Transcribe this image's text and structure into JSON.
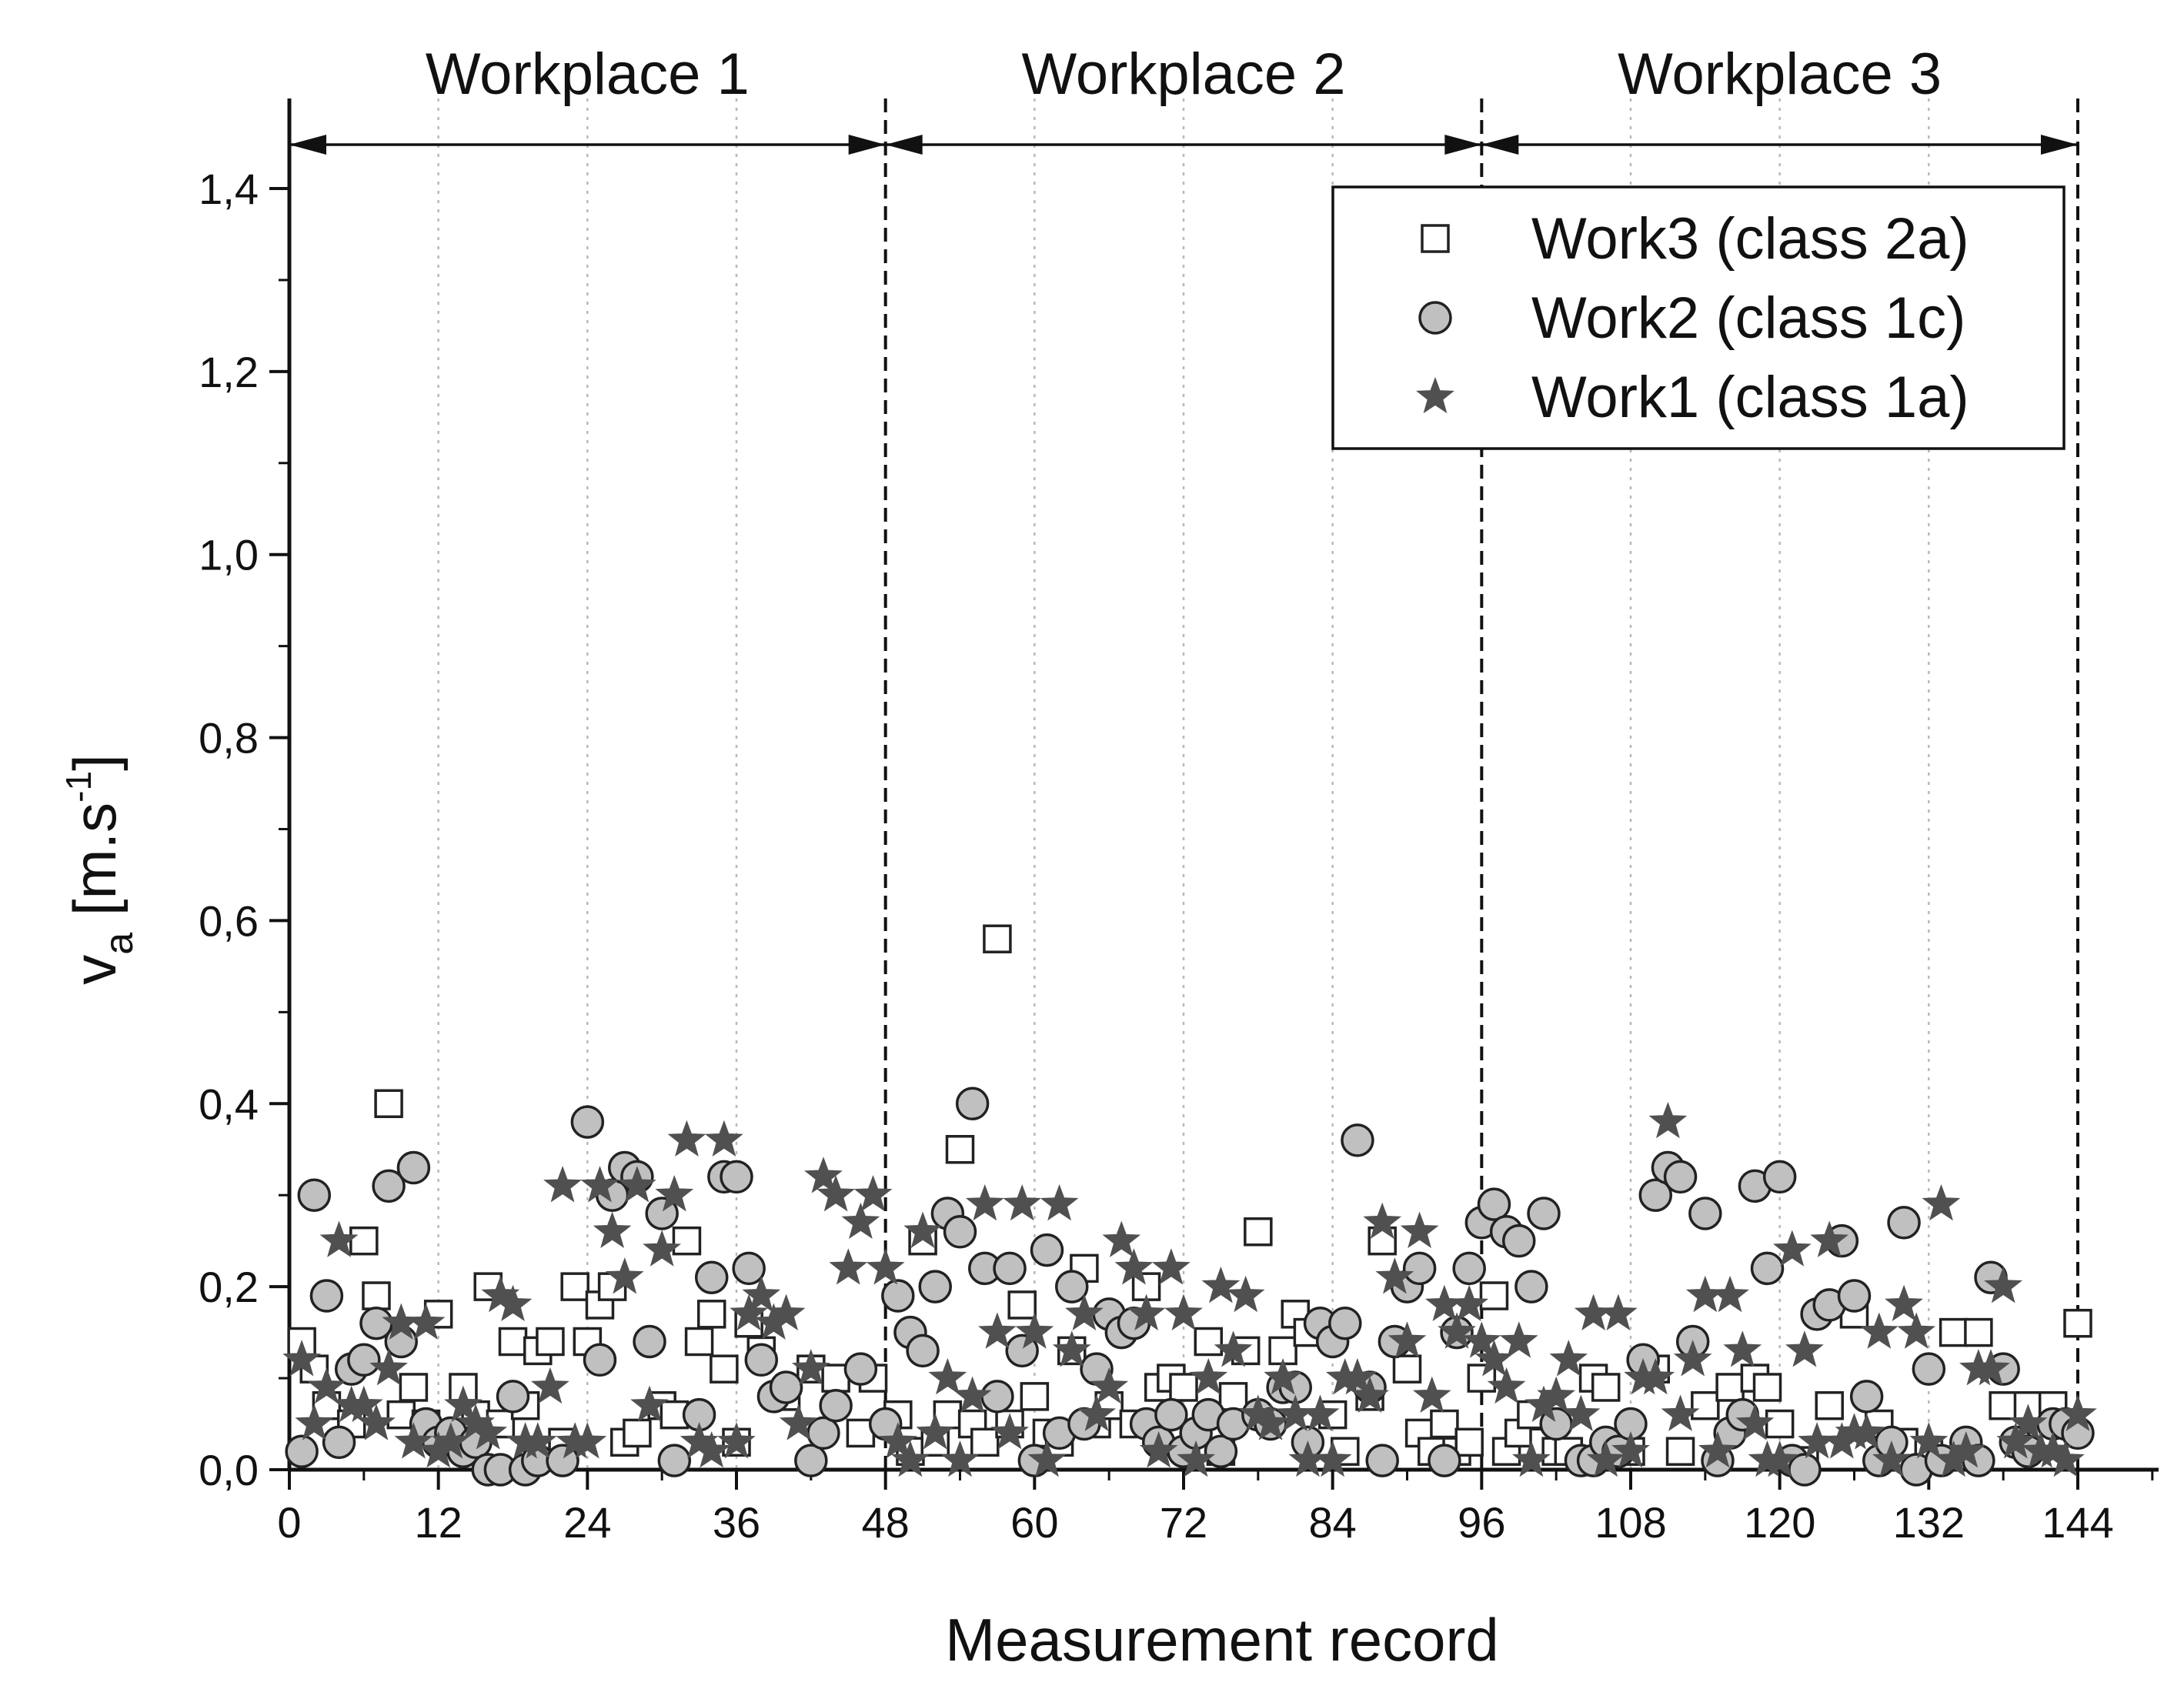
{
  "chart_data": {
    "type": "scatter",
    "xlabel": "Measurement record",
    "ylabel_main": "v",
    "ylabel_sub": "a",
    "ylabel_unit_prefix": " [m.s",
    "ylabel_unit_sup": "-1",
    "ylabel_unit_suffix": "]",
    "xlim": [
      0,
      144
    ],
    "ylim": [
      0,
      1.4
    ],
    "xticks": [
      0,
      12,
      24,
      36,
      48,
      60,
      72,
      84,
      96,
      108,
      120,
      132,
      144
    ],
    "xtick_labels": [
      "0",
      "12",
      "24",
      "36",
      "48",
      "60",
      "72",
      "84",
      "96",
      "108",
      "120",
      "132",
      "144"
    ],
    "yticks": [
      0,
      0.2,
      0.4,
      0.6,
      0.8,
      1.0,
      1.2,
      1.4
    ],
    "ytick_labels": [
      "0,0",
      "0,2",
      "0,4",
      "0,6",
      "0,8",
      "1,0",
      "1,2",
      "1,4"
    ],
    "grid": "vertical dotted",
    "regions": [
      {
        "label": "Workplace 1",
        "start": 0,
        "end": 48
      },
      {
        "label": "Workplace 2",
        "start": 48,
        "end": 96
      },
      {
        "label": "Workplace 3",
        "start": 96,
        "end": 144
      }
    ],
    "legend_position": "top-right",
    "series": [
      {
        "name": "Work3 (class 2a)",
        "marker": "square",
        "fill": "#ffffff",
        "stroke": "#222222",
        "x": [
          1,
          2,
          3,
          5,
          6,
          7,
          8,
          9,
          10,
          11,
          12,
          13,
          14,
          15,
          16,
          17,
          18,
          19,
          20,
          21,
          22,
          23,
          24,
          25,
          26,
          27,
          28,
          30,
          31,
          32,
          33,
          34,
          35,
          36,
          37,
          38,
          40,
          42,
          44,
          46,
          47,
          49,
          50,
          51,
          52,
          53,
          54,
          55,
          56,
          57,
          58,
          59,
          60,
          61,
          62,
          63,
          64,
          65,
          66,
          68,
          69,
          70,
          71,
          72,
          74,
          75,
          76,
          77,
          78,
          80,
          81,
          82,
          84,
          85,
          87,
          88,
          90,
          91,
          92,
          93,
          94,
          95,
          96,
          97,
          98,
          99,
          100,
          101,
          102,
          103,
          105,
          106,
          108,
          110,
          112,
          114,
          116,
          118,
          119,
          120,
          122,
          124,
          126,
          128,
          130,
          132,
          134,
          136,
          138,
          140,
          142,
          144
        ],
        "y": [
          0.14,
          0.11,
          0.07,
          0.05,
          0.25,
          0.19,
          0.4,
          0.06,
          0.09,
          0.05,
          0.17,
          0.04,
          0.09,
          0.06,
          0.2,
          0.05,
          0.14,
          0.07,
          0.13,
          0.14,
          0.03,
          0.2,
          0.14,
          0.18,
          0.2,
          0.03,
          0.04,
          0.07,
          0.06,
          0.25,
          0.14,
          0.17,
          0.11,
          0.03,
          0.16,
          0.13,
          0.08,
          0.11,
          0.1,
          0.04,
          0.1,
          0.06,
          0.02,
          0.25,
          0.03,
          0.06,
          0.35,
          0.05,
          0.03,
          0.58,
          0.05,
          0.18,
          0.08,
          0.04,
          0.03,
          0.13,
          0.22,
          0.05,
          0.07,
          0.05,
          0.2,
          0.09,
          0.1,
          0.09,
          0.14,
          0.02,
          0.08,
          0.13,
          0.26,
          0.13,
          0.17,
          0.15,
          0.06,
          0.02,
          0.08,
          0.25,
          0.11,
          0.04,
          0.02,
          0.05,
          0.02,
          0.03,
          0.1,
          0.19,
          0.02,
          0.04,
          0.06,
          0.03,
          0.02,
          0.02,
          0.1,
          0.09,
          0.02,
          0.11,
          0.02,
          0.07,
          0.09,
          0.1,
          0.09,
          0.05,
          0.01,
          0.07,
          0.17,
          0.05,
          0.03,
          0.02,
          0.15,
          0.15,
          0.07,
          0.07,
          0.07,
          0.16
        ]
      },
      {
        "name": "Work2 (class 1c)",
        "marker": "circle",
        "fill": "#c0c0c0",
        "stroke": "#222222",
        "x": [
          1,
          2,
          3,
          4,
          5,
          6,
          7,
          8,
          9,
          10,
          11,
          12,
          13,
          14,
          15,
          16,
          17,
          18,
          19,
          20,
          22,
          24,
          25,
          26,
          27,
          28,
          29,
          30,
          31,
          33,
          34,
          35,
          36,
          37,
          38,
          39,
          40,
          42,
          43,
          44,
          46,
          48,
          49,
          50,
          51,
          52,
          53,
          54,
          55,
          56,
          57,
          58,
          59,
          60,
          61,
          62,
          63,
          64,
          65,
          66,
          67,
          68,
          69,
          70,
          71,
          72,
          73,
          74,
          75,
          76,
          78,
          79,
          80,
          81,
          82,
          83,
          84,
          85,
          86,
          87,
          88,
          89,
          90,
          91,
          93,
          94,
          95,
          96,
          97,
          98,
          99,
          100,
          101,
          102,
          104,
          105,
          106,
          107,
          108,
          109,
          110,
          111,
          112,
          113,
          114,
          115,
          116,
          117,
          118,
          119,
          120,
          121,
          122,
          123,
          124,
          125,
          126,
          127,
          128,
          129,
          130,
          131,
          132,
          133,
          135,
          136,
          137,
          138,
          139,
          140,
          142,
          143,
          144
        ],
        "y": [
          0.02,
          0.3,
          0.19,
          0.03,
          0.11,
          0.12,
          0.16,
          0.31,
          0.14,
          0.33,
          0.05,
          0.03,
          0.04,
          0.02,
          0.03,
          0.0,
          0.0,
          0.08,
          0.0,
          0.01,
          0.01,
          0.38,
          0.12,
          0.3,
          0.33,
          0.32,
          0.14,
          0.28,
          0.01,
          0.06,
          0.21,
          0.32,
          0.32,
          0.22,
          0.12,
          0.08,
          0.09,
          0.01,
          0.04,
          0.07,
          0.11,
          0.05,
          0.19,
          0.15,
          0.13,
          0.2,
          0.28,
          0.26,
          0.4,
          0.22,
          0.08,
          0.22,
          0.13,
          0.01,
          0.24,
          0.04,
          0.2,
          0.05,
          0.11,
          0.17,
          0.15,
          0.16,
          0.05,
          0.03,
          0.06,
          0.02,
          0.04,
          0.06,
          0.02,
          0.05,
          0.06,
          0.05,
          0.09,
          0.09,
          0.03,
          0.16,
          0.14,
          0.16,
          0.36,
          0.09,
          0.01,
          0.14,
          0.2,
          0.22,
          0.01,
          0.15,
          0.22,
          0.27,
          0.29,
          0.26,
          0.25,
          0.2,
          0.28,
          0.05,
          0.01,
          0.01,
          0.03,
          0.02,
          0.05,
          0.12,
          0.3,
          0.33,
          0.32,
          0.14,
          0.28,
          0.01,
          0.04,
          0.06,
          0.31,
          0.22,
          0.32,
          0.01,
          0.0,
          0.17,
          0.18,
          0.25,
          0.19,
          0.08,
          0.01,
          0.03,
          0.27,
          0.0,
          0.11,
          0.01,
          0.03,
          0.01,
          0.21,
          0.11,
          0.03,
          0.02,
          0.05,
          0.05,
          0.04
        ]
      },
      {
        "name": "Work1 (class 1a)",
        "marker": "star",
        "fill": "#505050",
        "stroke": "#505050",
        "x": [
          1,
          2,
          3,
          4,
          5,
          6,
          7,
          8,
          9,
          10,
          11,
          12,
          13,
          14,
          15,
          16,
          17,
          18,
          19,
          20,
          21,
          22,
          23,
          24,
          25,
          26,
          27,
          28,
          29,
          30,
          31,
          32,
          33,
          34,
          35,
          36,
          37,
          38,
          39,
          40,
          41,
          42,
          43,
          44,
          45,
          46,
          47,
          48,
          49,
          50,
          51,
          52,
          53,
          54,
          55,
          56,
          57,
          58,
          59,
          60,
          61,
          62,
          63,
          64,
          65,
          66,
          67,
          68,
          69,
          70,
          71,
          72,
          73,
          74,
          75,
          76,
          77,
          78,
          79,
          80,
          81,
          82,
          83,
          84,
          85,
          86,
          87,
          88,
          89,
          90,
          91,
          92,
          93,
          94,
          95,
          96,
          97,
          98,
          99,
          100,
          101,
          102,
          103,
          104,
          105,
          106,
          107,
          108,
          109,
          110,
          111,
          112,
          113,
          114,
          115,
          116,
          117,
          118,
          119,
          120,
          121,
          122,
          123,
          124,
          125,
          126,
          127,
          128,
          129,
          130,
          131,
          132,
          133,
          134,
          135,
          136,
          137,
          138,
          139,
          140,
          141,
          142,
          143,
          144
        ],
        "y": [
          0.12,
          0.05,
          0.09,
          0.25,
          0.07,
          0.07,
          0.05,
          0.11,
          0.16,
          0.03,
          0.16,
          0.02,
          0.03,
          0.07,
          0.05,
          0.04,
          0.19,
          0.18,
          0.03,
          0.03,
          0.09,
          0.31,
          0.03,
          0.03,
          0.31,
          0.26,
          0.21,
          0.31,
          0.07,
          0.24,
          0.3,
          0.36,
          0.03,
          0.02,
          0.36,
          0.03,
          0.17,
          0.19,
          0.16,
          0.17,
          0.05,
          0.11,
          0.32,
          0.3,
          0.22,
          0.27,
          0.3,
          0.22,
          0.03,
          0.01,
          0.26,
          0.04,
          0.1,
          0.01,
          0.08,
          0.29,
          0.15,
          0.04,
          0.29,
          0.15,
          0.01,
          0.29,
          0.13,
          0.17,
          0.06,
          0.09,
          0.25,
          0.22,
          0.17,
          0.02,
          0.22,
          0.17,
          0.01,
          0.1,
          0.2,
          0.13,
          0.19,
          0.06,
          0.05,
          0.1,
          0.06,
          0.01,
          0.06,
          0.01,
          0.1,
          0.1,
          0.08,
          0.27,
          0.21,
          0.14,
          0.26,
          0.08,
          0.18,
          0.15,
          0.18,
          0.14,
          0.12,
          0.09,
          0.14,
          0.01,
          0.07,
          0.08,
          0.12,
          0.06,
          0.17,
          0.01,
          0.17,
          0.02,
          0.1,
          0.1,
          0.38,
          0.06,
          0.12,
          0.19,
          0.02,
          0.19,
          0.13,
          0.05,
          0.01,
          0.01,
          0.24,
          0.13,
          0.03,
          0.25,
          0.03,
          0.04,
          0.04,
          0.15,
          0.01,
          0.18,
          0.15,
          0.03,
          0.29,
          0.01,
          0.02,
          0.11,
          0.11,
          0.2,
          0.03,
          0.05,
          0.02,
          0.02,
          0.01,
          0.06
        ]
      }
    ]
  }
}
